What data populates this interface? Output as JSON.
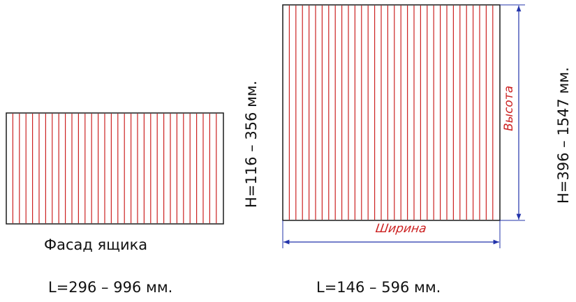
{
  "drawer_facade": {
    "caption": "Фасад ящика",
    "height_range": "H=116 – 356 мм.",
    "length_range": "L=296 – 996 мм.",
    "line_color": "#cc2222",
    "frame_color": "#1a1a1a"
  },
  "large_panel": {
    "width_dimension_label": "Ширина",
    "height_dimension_label": "Высота",
    "height_range": "H=396 – 1547 мм.",
    "length_range": "L=146 – 596 мм.",
    "dimension_color": "#2233aa",
    "dimension_text_color": "#cc2222",
    "line_color": "#cc2222",
    "frame_color": "#1a1a1a"
  }
}
